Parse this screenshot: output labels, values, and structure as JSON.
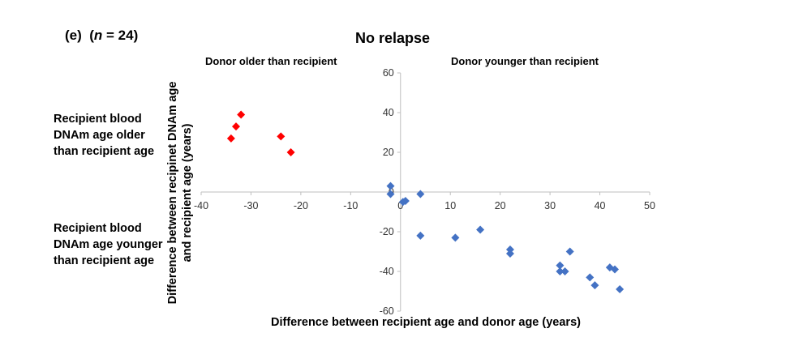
{
  "figure": {
    "panel_label": "(e)",
    "n_prefix": "(",
    "n_label": "n",
    "n_suffix": " = 24)",
    "side_note_top": "Recipient blood DNAm age older than recipient age",
    "side_note_bottom": "Recipient blood DNAm age younger than recipient age"
  },
  "chart_data": {
    "type": "scatter",
    "title": "No relapse",
    "xlabel": "Difference between recipient age and donor age (years)",
    "ylabel_line1": "Difference between recipinet DNAm age",
    "ylabel_line2": "and recipient age (years)",
    "xlim": [
      -40,
      50
    ],
    "ylim": [
      -60,
      60
    ],
    "x_ticks": [
      "-40",
      "-30",
      "-20",
      "-10",
      "0",
      "10",
      "20",
      "30",
      "40",
      "50"
    ],
    "y_ticks": [
      "-60",
      "-40",
      "-20",
      "0",
      "20",
      "40",
      "60"
    ],
    "grid": false,
    "quadrant_labels": {
      "left": "Donor older than recipient",
      "right": "Donor younger than recipient"
    },
    "series": [
      {
        "color": "#ff0000",
        "marker": "diamond",
        "points": [
          [
            -34,
            27
          ],
          [
            -33,
            33
          ],
          [
            -32,
            39
          ],
          [
            -24,
            28
          ],
          [
            -22,
            20
          ]
        ]
      },
      {
        "color": "#4472c4",
        "marker": "diamond",
        "points": [
          [
            -2,
            3
          ],
          [
            -2,
            -1
          ],
          [
            0.5,
            -5
          ],
          [
            1,
            -4.5
          ],
          [
            4,
            -1
          ],
          [
            4,
            -22
          ],
          [
            11,
            -23
          ],
          [
            16,
            -19
          ],
          [
            22,
            -29
          ],
          [
            22,
            -31
          ],
          [
            32,
            -37
          ],
          [
            32,
            -40
          ],
          [
            33,
            -40
          ],
          [
            34,
            -30
          ],
          [
            38,
            -43
          ],
          [
            39,
            -47
          ],
          [
            42,
            -38
          ],
          [
            43,
            -39
          ],
          [
            44,
            -49
          ]
        ]
      }
    ]
  }
}
